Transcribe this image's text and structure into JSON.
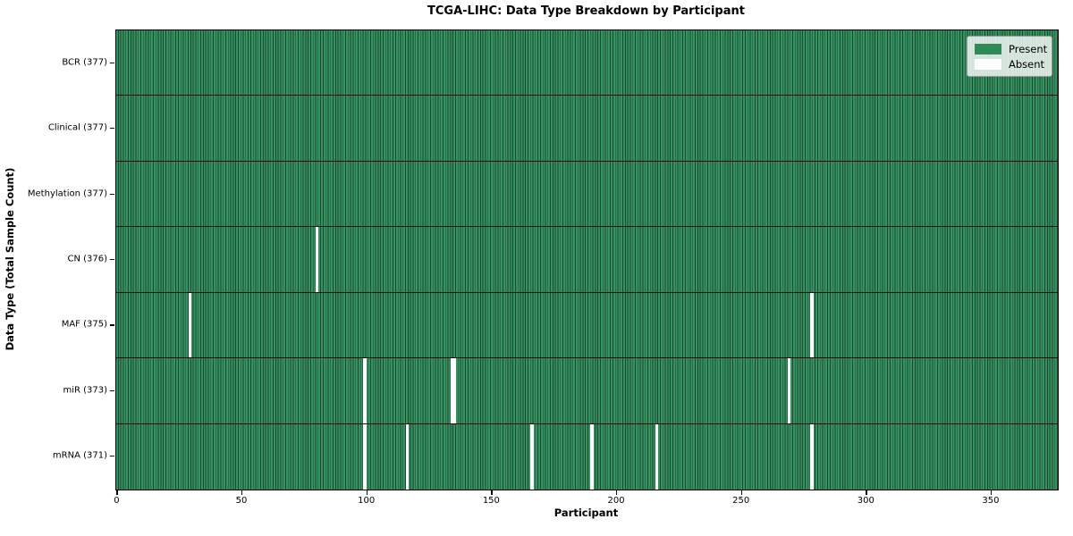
{
  "chart_data": {
    "type": "heatmap",
    "title": "TCGA-LIHC: Data Type Breakdown by Participant",
    "xlabel": "Participant",
    "ylabel": "Data Type (Total Sample Count)",
    "n_participants": 377,
    "xlim": [
      -0.5,
      376.5
    ],
    "x_ticks": [
      0,
      50,
      100,
      150,
      200,
      250,
      300,
      350
    ],
    "grid": false,
    "legend_position": "upper right",
    "legend": {
      "entries": [
        {
          "label": "Present",
          "color": "#2e8b57"
        },
        {
          "label": "Absent",
          "color": "#ffffff"
        }
      ]
    },
    "rows": [
      {
        "label": "BCR (377)",
        "data_type": "BCR",
        "total_samples": 377,
        "absent_participants": []
      },
      {
        "label": "Clinical (377)",
        "data_type": "Clinical",
        "total_samples": 377,
        "absent_participants": []
      },
      {
        "label": "Methylation (377)",
        "data_type": "Methylation",
        "total_samples": 377,
        "absent_participants": []
      },
      {
        "label": "CN (376)",
        "data_type": "CN",
        "total_samples": 376,
        "absent_participants": [
          80
        ]
      },
      {
        "label": "MAF (375)",
        "data_type": "MAF",
        "total_samples": 375,
        "absent_participants": [
          29,
          278
        ]
      },
      {
        "label": "miR (373)",
        "data_type": "miR",
        "total_samples": 373,
        "absent_participants": [
          99,
          134,
          135,
          269
        ]
      },
      {
        "label": "mRNA (371)",
        "data_type": "mRNA",
        "total_samples": 371,
        "absent_participants": [
          99,
          116,
          166,
          190,
          216,
          278
        ]
      }
    ],
    "colors": {
      "present": "#2e8b57",
      "present_stripe_light": "#359361",
      "cell_edge": "#1d4730",
      "row_separator": "#0d0d0d",
      "absent": "#ffffff"
    }
  }
}
